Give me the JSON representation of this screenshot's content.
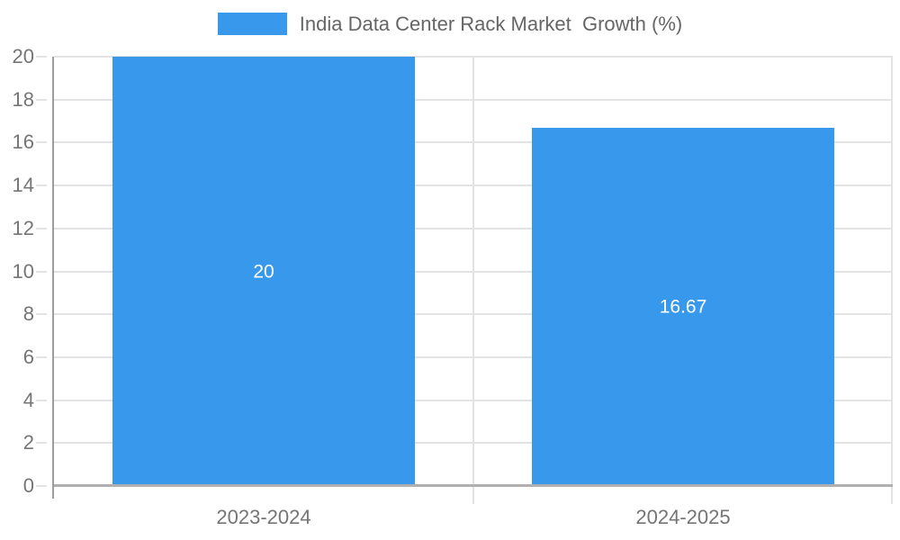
{
  "legend": {
    "label": "India Data Center Rack Market  Growth (%)"
  },
  "colors": {
    "bar": "#3898ec",
    "grid": "#e3e3e3",
    "baseline": "#b0b0b0",
    "axis_line": "#9c9c9c",
    "tick_text": "#757575",
    "legend_text": "#666666",
    "bar_label_text": "#ffffff"
  },
  "chart_data": {
    "type": "bar",
    "title": "India Data Center Rack Market  Growth (%)",
    "categories": [
      "2023-2024",
      "2024-2025"
    ],
    "values": [
      20,
      16.67
    ],
    "bar_labels": [
      "20",
      "16.67"
    ],
    "xlabel": "",
    "ylabel": "",
    "ylim": [
      0,
      20
    ],
    "yticks": [
      0,
      2,
      4,
      6,
      8,
      10,
      12,
      14,
      16,
      18,
      20
    ],
    "grid": true,
    "legend_position": "top",
    "bar_label_position": "center",
    "bar_width_fraction": 0.72
  }
}
